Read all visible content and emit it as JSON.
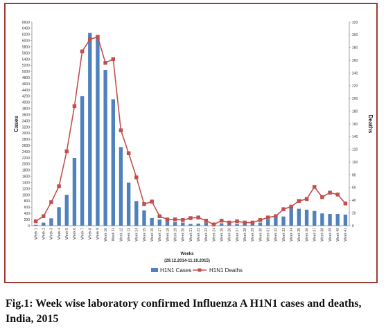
{
  "caption": "Fig.1: Week wise laboratory confirmed Influenza A H1N1 cases and deaths, India, 2015",
  "chart_data": {
    "type": "bar+line",
    "categories": [
      "Week 1",
      "Week 2",
      "Week 3",
      "Week 4",
      "Week 5",
      "Week 6",
      "Week 7",
      "Week 8",
      "Week 9",
      "Week 10",
      "Week 11",
      "Week 12",
      "Week 13",
      "Week 14",
      "Week 15",
      "Week 16",
      "Week 17",
      "Week 18",
      "Week 19",
      "Week 20",
      "Week 21",
      "Week 22",
      "Week 23",
      "Week 24",
      "Week 25",
      "Week 26",
      "Week 27",
      "Week 28",
      "Week 29",
      "Week 30",
      "Week 31",
      "Week 32",
      "Week 33",
      "Week 34",
      "Week 35",
      "Week 36",
      "Week 37",
      "Week 38",
      "Week 39",
      "Week 40",
      "Week 41"
    ],
    "series": [
      {
        "name": "H1N1 Cases",
        "axis": "left",
        "type": "bar",
        "color": "#4f81bd",
        "values": [
          30,
          100,
          240,
          600,
          1000,
          2200,
          4200,
          6250,
          6100,
          5050,
          4100,
          2550,
          1400,
          800,
          500,
          250,
          200,
          180,
          120,
          100,
          60,
          70,
          100,
          90,
          80,
          70,
          60,
          60,
          80,
          100,
          200,
          250,
          300,
          600,
          550,
          520,
          480,
          400,
          380,
          380,
          360
        ]
      },
      {
        "name": "H1N1 Deaths",
        "axis": "right",
        "type": "line",
        "color": "#c0504d",
        "values": [
          7,
          15,
          37,
          62,
          117,
          188,
          274,
          293,
          297,
          256,
          262,
          150,
          114,
          76,
          34,
          38,
          15,
          10,
          10,
          9,
          12,
          13,
          8,
          2,
          8,
          5,
          7,
          5,
          5,
          9,
          13,
          15,
          26,
          30,
          39,
          42,
          61,
          45,
          52,
          49,
          35
        ]
      }
    ],
    "y_left": {
      "label": "Cases",
      "ticks": [
        "0",
        "200",
        "400",
        "600",
        "800",
        "1000",
        "1200",
        "1400",
        "1600",
        "1800",
        "2000",
        "2200",
        "2400",
        "2600",
        "2800",
        "3000",
        "3200",
        "3400",
        "3600",
        "3800",
        "4000",
        "4200",
        "4400",
        "4600",
        "4800",
        "5000",
        "5200",
        "5400",
        "5600",
        "5800",
        "6000",
        "6200",
        "6400",
        "6600"
      ],
      "ylim": [
        0,
        6600
      ]
    },
    "y_right": {
      "label": "Deaths",
      "ticks": [
        "0",
        "20",
        "40",
        "60",
        "80",
        "100",
        "120",
        "140",
        "160",
        "180",
        "200",
        "220",
        "240",
        "260",
        "280",
        "300",
        "320"
      ],
      "ylim": [
        0,
        320
      ]
    },
    "xlabel": "Weeks",
    "xsublabel": "(29.12.2014-11.10.2015)",
    "legend": {
      "position": "bottom",
      "entries": [
        "H1N1 Cases",
        "H1N1 Deaths"
      ]
    },
    "grid": false
  }
}
